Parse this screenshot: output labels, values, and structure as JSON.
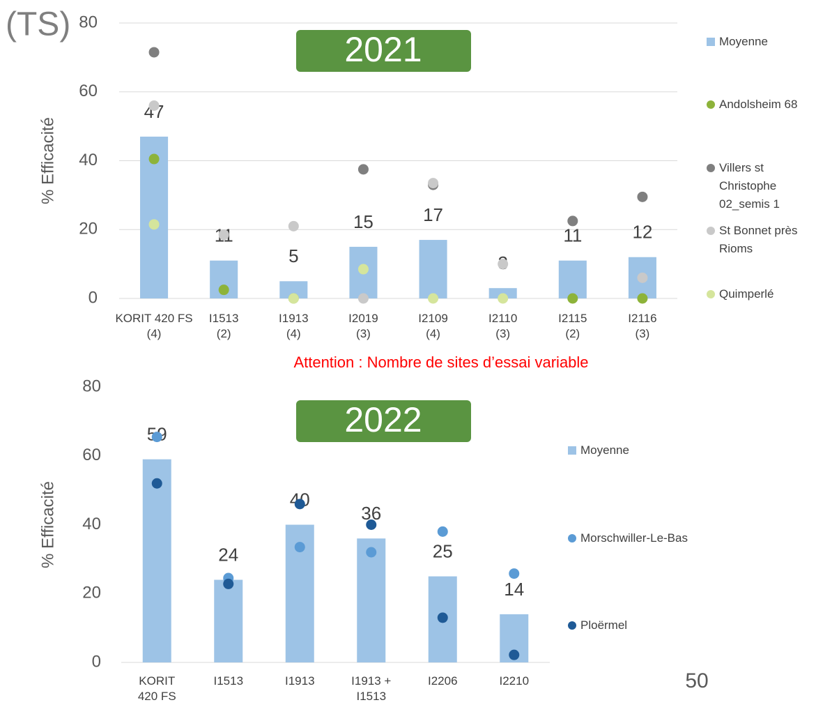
{
  "corner_label": "(TS)",
  "note": "Attention : Nombre de sites d’essai variable",
  "page_number": "50",
  "chart_data": [
    {
      "type": "bar",
      "title": "2021",
      "y_label": "% Efficacité",
      "categories": [
        "KORIT 420 FS\n(4)",
        "I1513\n(2)",
        "I1913\n(4)",
        "I2019\n(3)",
        "I2109\n(4)",
        "I2110\n(3)",
        "I2115\n(2)",
        "I2116\n(3)"
      ],
      "ylim": [
        0,
        80
      ],
      "yticks": [
        0,
        20,
        40,
        60,
        80
      ],
      "grid": true,
      "legend": "right",
      "series": [
        {
          "name": "Moyenne",
          "type": "bar",
          "color": "#9dc3e6",
          "values": [
            47,
            11,
            5,
            15,
            17,
            3,
            11,
            12
          ],
          "labels": true
        },
        {
          "name": "Andolsheim 68",
          "type": "scatter",
          "color": "#8db33a",
          "values": [
            40.5,
            2.5,
            0,
            null,
            null,
            null,
            0,
            0
          ]
        },
        {
          "name": "Villers st\nChristophe\n02_semis 1",
          "type": "scatter",
          "color": "#7f7f7f",
          "values": [
            71.5,
            null,
            null,
            37.5,
            33,
            null,
            22.5,
            29.5
          ]
        },
        {
          "name": "St Bonnet près\nRioms",
          "type": "scatter",
          "color": "#c9c9c9",
          "values": [
            56,
            18.5,
            21,
            0,
            33.5,
            10,
            null,
            6
          ]
        },
        {
          "name": "Quimperlé",
          "type": "scatter",
          "color": "#d5e59c",
          "values": [
            21.5,
            null,
            0,
            8.5,
            0,
            0,
            null,
            null
          ]
        }
      ]
    },
    {
      "type": "bar",
      "title": "2022",
      "y_label": "% Efficacité",
      "categories": [
        "KORIT\n420 FS",
        "I1513",
        "I1913",
        "I1913 +\nI1513",
        "I2206",
        "I2210"
      ],
      "ylim": [
        0,
        80
      ],
      "yticks": [
        0,
        20,
        40,
        60,
        80
      ],
      "grid": false,
      "legend": "right",
      "series": [
        {
          "name": "Moyenne",
          "type": "bar",
          "color": "#9dc3e6",
          "values": [
            59,
            24,
            40,
            36,
            25,
            14
          ],
          "labels": true
        },
        {
          "name": "Morschwiller-Le-Bas",
          "type": "scatter",
          "color": "#5b9bd5",
          "values": [
            65.5,
            24.5,
            33.5,
            32,
            38,
            25.8
          ]
        },
        {
          "name": "Ploërmel",
          "type": "scatter",
          "color": "#1f5a96",
          "values": [
            52,
            22.8,
            46,
            40,
            13,
            2.2
          ]
        }
      ]
    }
  ]
}
